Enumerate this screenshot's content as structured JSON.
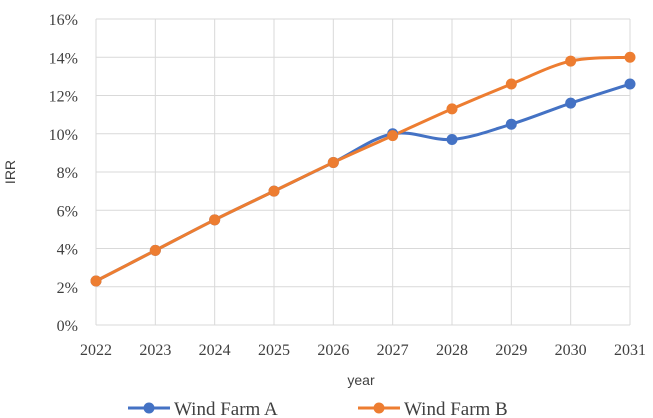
{
  "chart_data": {
    "type": "line",
    "title": "",
    "xlabel": "year",
    "ylabel": "IRR",
    "x": [
      2022,
      2023,
      2024,
      2025,
      2026,
      2027,
      2028,
      2029,
      2030,
      2031
    ],
    "x_tick_labels": [
      "2022",
      "2023",
      "2024",
      "2025",
      "2026",
      "2027",
      "2028",
      "2029",
      "2030",
      "2031"
    ],
    "ylim": [
      0,
      16
    ],
    "y_ticks": [
      0,
      2,
      4,
      6,
      8,
      10,
      12,
      14,
      16
    ],
    "y_tick_labels": [
      "0%",
      "2%",
      "4%",
      "6%",
      "8%",
      "10%",
      "12%",
      "14%",
      "16%"
    ],
    "grid": "on",
    "legend_position": "bottom",
    "smooth": true,
    "series": [
      {
        "name": "Wind Farm A",
        "color": "#4472c4",
        "values": [
          2.3,
          3.9,
          5.5,
          7.0,
          8.5,
          10.0,
          9.7,
          10.5,
          11.6,
          12.6
        ]
      },
      {
        "name": "Wind Farm B",
        "color": "#ed7d31",
        "values": [
          2.3,
          3.9,
          5.5,
          7.0,
          8.5,
          9.9,
          11.3,
          12.6,
          13.8,
          14.0
        ]
      }
    ]
  }
}
